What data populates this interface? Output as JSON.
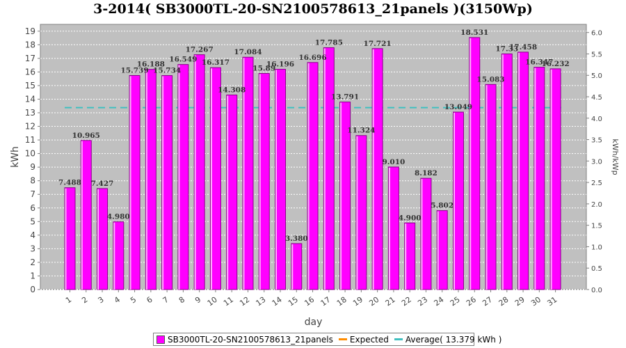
{
  "colors": {
    "bar": "#ff00ff",
    "bar_edge": "#cc00cc",
    "plot_bg": "#c0c0c0",
    "expected": "#ff8c00",
    "average": "#40c0c0"
  },
  "chart_data": {
    "type": "bar",
    "title": "3-2014( SB3000TL-20-SN2100578613_21panels )(3150Wp)",
    "xlabel": "day",
    "ylabel": "kWh",
    "y2label": "kWh/kWp",
    "ylim": [
      0,
      19.5
    ],
    "yticks": [
      0,
      1,
      2,
      3,
      4,
      5,
      6,
      7,
      8,
      9,
      10,
      11,
      12,
      13,
      14,
      15,
      16,
      17,
      18,
      19
    ],
    "y2lim": [
      0,
      6.19
    ],
    "y2ticks": [
      "0.0",
      "0.5",
      "1.0",
      "1.5",
      "2.0",
      "2.5",
      "3.0",
      "3.5",
      "4.0",
      "4.5",
      "5.0",
      "5.5",
      "6.0"
    ],
    "grid": true,
    "legend_position": "bottom",
    "categories": [
      "1",
      "2",
      "3",
      "4",
      "5",
      "6",
      "7",
      "8",
      "9",
      "10",
      "11",
      "12",
      "13",
      "14",
      "15",
      "16",
      "17",
      "18",
      "19",
      "20",
      "21",
      "22",
      "23",
      "24",
      "25",
      "26",
      "27",
      "28",
      "29",
      "30",
      "31"
    ],
    "series": [
      {
        "name": "SB3000TL-20-SN2100578613_21panels",
        "values": [
          7.488,
          10.965,
          7.427,
          4.98,
          15.739,
          16.188,
          15.734,
          16.549,
          17.267,
          16.317,
          14.308,
          17.084,
          15.89,
          16.196,
          3.38,
          16.696,
          17.785,
          13.791,
          11.324,
          17.721,
          9.01,
          4.9,
          8.182,
          5.802,
          13.049,
          18.531,
          15.083,
          17.33,
          17.458,
          16.347,
          16.232
        ],
        "labels": [
          "7.488",
          "10.965",
          "7.427",
          "4.980",
          "15.739",
          "16.188",
          "15.734",
          "16.549",
          "17.267",
          "16.317",
          "14.308",
          "17.084",
          "15.89",
          "16.196",
          "3.380",
          "16.696",
          "17.785",
          "13.791",
          "11.324",
          "17.721",
          "9.010",
          "4.900",
          "8.182",
          "5.802",
          "13.049",
          "18.531",
          "15.083",
          "17.33",
          "17.458",
          "16.347",
          "16.232"
        ]
      }
    ],
    "average": {
      "name": "Average( 13.379 kWh )",
      "value": 13.379
    },
    "expected": {
      "name": "Expected"
    }
  }
}
